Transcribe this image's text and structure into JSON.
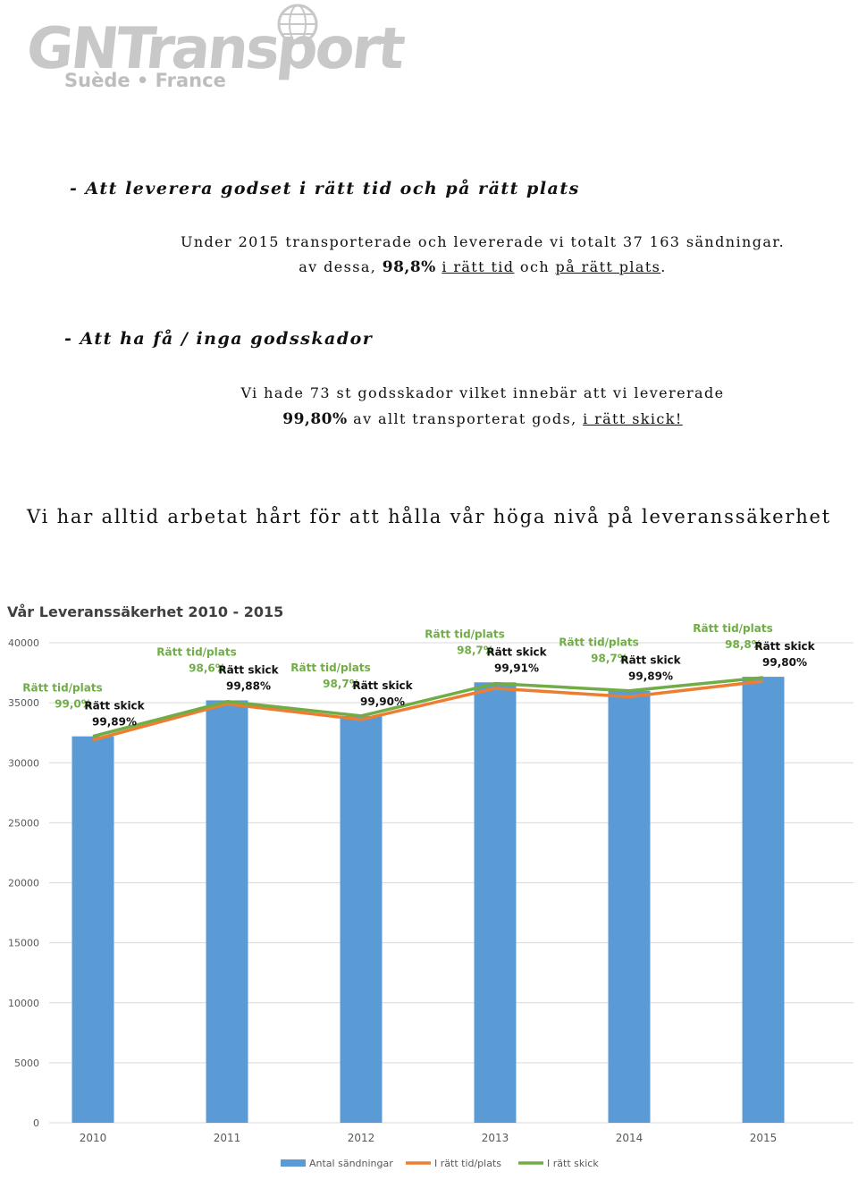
{
  "logo": {
    "brand": "GNTransport",
    "sub": "Suède • France"
  },
  "section1": {
    "heading": "- Att leverera godset i rätt tid och på rätt plats",
    "line1": "Under 2015 transporterade och levererade vi totalt 37 163 sändningar.",
    "line2_pre": "av dessa, ",
    "line2_pct": "98,8%",
    "line2_sp": " ",
    "line2_link1": "i rätt tid",
    "line2_mid": " och ",
    "line2_link2": "på rätt plats",
    "line2_end": "."
  },
  "section2": {
    "heading": "- Att ha få / inga godsskador",
    "line1": "Vi hade 73 st godsskador vilket innebär att vi levererade",
    "line2_pct": "99,80%",
    "line2_mid": " av allt transporterat gods, ",
    "line2_link": "i rätt skick!"
  },
  "tagline": "Vi har alltid arbetat hårt för att hålla vår höga nivå på leveranssäkerhet",
  "chart_data": {
    "type": "bar",
    "title": "Vår Leveranssäkerhet 2010 - 2015",
    "categories": [
      "2010",
      "2011",
      "2012",
      "2013",
      "2014",
      "2015"
    ],
    "ylim": [
      0,
      40000
    ],
    "yticks": [
      0,
      5000,
      10000,
      15000,
      20000,
      25000,
      30000,
      35000,
      40000
    ],
    "series": [
      {
        "name": "Antal sändningar",
        "type": "bar",
        "color": "#5b9bd5",
        "values": [
          32200,
          35200,
          33900,
          36700,
          36000,
          37163
        ]
      },
      {
        "name": "I rätt tid/plats",
        "type": "line",
        "color": "#ed7d31",
        "values": [
          31900,
          34900,
          33600,
          36200,
          35500,
          36800
        ]
      },
      {
        "name": "I rätt skick",
        "type": "line",
        "color": "#70ad47",
        "values": [
          32200,
          35100,
          33900,
          36600,
          36000,
          37100
        ]
      }
    ],
    "annotations": [
      {
        "tid_label": "Rätt tid/plats",
        "tid_value": "99,0%",
        "skick_label": "Rätt skick",
        "skick_value": "99,89%"
      },
      {
        "tid_label": "Rätt tid/plats",
        "tid_value": "98,6%",
        "skick_label": "Rätt skick",
        "skick_value": "99,88%"
      },
      {
        "tid_label": "Rätt tid/plats",
        "tid_value": "98,7%",
        "skick_label": "Rätt skick",
        "skick_value": "99,90%"
      },
      {
        "tid_label": "Rätt tid/plats",
        "tid_value": "98,7%",
        "skick_label": "Rätt skick",
        "skick_value": "99,91%"
      },
      {
        "tid_label": "Rätt tid/plats",
        "tid_value": "98,7%",
        "skick_label": "Rätt skick",
        "skick_value": "99,89%"
      },
      {
        "tid_label": "Rätt tid/plats",
        "tid_value": "98,8%",
        "skick_label": "Rätt skick",
        "skick_value": "99,80%"
      }
    ],
    "annotation_color_tid": "#70ad47",
    "annotation_color_skick": "#111111",
    "legend_position": "bottom"
  }
}
